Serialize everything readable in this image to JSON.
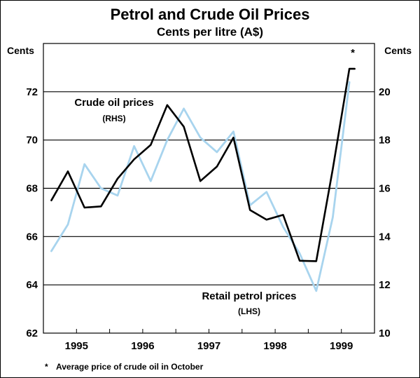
{
  "chart_data": {
    "type": "line",
    "title": "Petrol and Crude Oil Prices",
    "subtitle": "Cents per litre (A$)",
    "left_axis": {
      "label": "Cents",
      "ylim": [
        62,
        74
      ],
      "ticks": [
        62,
        64,
        66,
        68,
        70,
        72
      ]
    },
    "right_axis": {
      "label": "Cents",
      "ylim": [
        10,
        22
      ],
      "ticks": [
        10,
        12,
        14,
        16,
        18,
        20
      ]
    },
    "x_axis": {
      "range": [
        1994.5,
        1999.5
      ],
      "tick_labels": [
        "1995",
        "1996",
        "1997",
        "1998",
        "1999"
      ],
      "tick_values": [
        1995,
        1996,
        1997,
        1998,
        1999
      ]
    },
    "grid": true,
    "series": [
      {
        "name_lines": [
          "Crude oil prices",
          "(RHS)"
        ],
        "axis": "right",
        "color": "#000000",
        "x": [
          1994.62,
          1994.87,
          1995.12,
          1995.37,
          1995.62,
          1995.87,
          1996.12,
          1996.37,
          1996.62,
          1996.87,
          1997.12,
          1997.37,
          1997.62,
          1997.87,
          1998.12,
          1998.37,
          1998.62,
          1998.87,
          1999.12,
          1999.2
        ],
        "values": [
          15.5,
          16.7,
          15.2,
          15.25,
          16.4,
          17.2,
          17.8,
          19.45,
          18.55,
          16.3,
          16.9,
          18.1,
          15.1,
          14.7,
          14.9,
          13.0,
          12.98,
          16.8,
          20.95,
          20.95
        ]
      },
      {
        "name_lines": [
          "Retail petrol prices",
          "(LHS)"
        ],
        "axis": "left",
        "color": "#a8d4ee",
        "x": [
          1994.62,
          1994.87,
          1995.12,
          1995.37,
          1995.62,
          1995.87,
          1996.12,
          1996.37,
          1996.62,
          1996.87,
          1997.12,
          1997.37,
          1997.62,
          1997.87,
          1998.12,
          1998.37,
          1998.62,
          1998.87,
          1999.12
        ],
        "values": [
          65.4,
          66.5,
          69.0,
          68.0,
          67.7,
          69.75,
          68.3,
          70.0,
          71.3,
          70.1,
          69.5,
          70.35,
          67.3,
          67.85,
          66.4,
          65.3,
          63.75,
          66.8,
          72.4
        ]
      }
    ],
    "annotation_marker": "*",
    "footnote": {
      "marker": "*",
      "text": "Average price of crude oil in October"
    }
  }
}
